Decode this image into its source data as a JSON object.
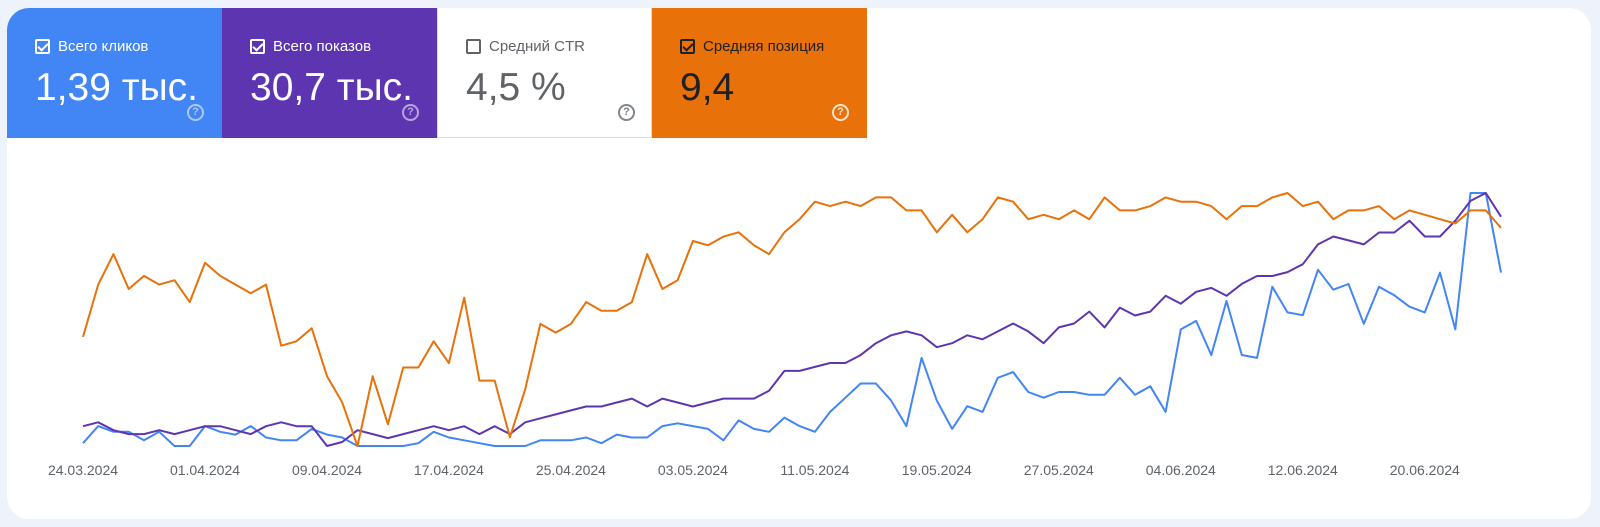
{
  "metrics": [
    {
      "key": "clicks",
      "label": "Всего кликов",
      "value": "1,39 тыс.",
      "checked": true,
      "color": "#4285f4"
    },
    {
      "key": "impressions",
      "label": "Всего показов",
      "value": "30,7 тыс.",
      "checked": true,
      "color": "#5e35b1"
    },
    {
      "key": "ctr",
      "label": "Средний CTR",
      "value": "4,5 %",
      "checked": false,
      "color": "#ffffff"
    },
    {
      "key": "position",
      "label": "Средняя позиция",
      "value": "9,4",
      "checked": true,
      "color": "#e8710a"
    }
  ],
  "help_glyph": "?",
  "chart_data": {
    "type": "line",
    "x_tick_labels": [
      "24.03.2024",
      "01.04.2024",
      "09.04.2024",
      "17.04.2024",
      "25.04.2024",
      "03.05.2024",
      "11.05.2024",
      "19.05.2024",
      "27.05.2024",
      "04.06.2024",
      "12.06.2024",
      "20.06.2024"
    ],
    "x_start": "24.03.2024",
    "x_end": "21.06.2024",
    "grid": false,
    "legend": "metric tiles above chart",
    "series": [
      {
        "name": "Всего кликов",
        "color": "#4285f4",
        "values": [
          1,
          7,
          5,
          5,
          2,
          5,
          0,
          0,
          7,
          5,
          4,
          7,
          3,
          2,
          2,
          6,
          4,
          3,
          0,
          0,
          0,
          0,
          1,
          5,
          3,
          2,
          1,
          0,
          0,
          0,
          2,
          2,
          2,
          3,
          1,
          4,
          3,
          3,
          7,
          8,
          7,
          6,
          2,
          9,
          6,
          5,
          10,
          7,
          5,
          12,
          17,
          22,
          22,
          16,
          7,
          31,
          16,
          6,
          14,
          12,
          24,
          26,
          19,
          17,
          19,
          19,
          18,
          18,
          24,
          18,
          21,
          12,
          41,
          44,
          32,
          51,
          32,
          31,
          56,
          47,
          46,
          62,
          55,
          57,
          43,
          56,
          53,
          49,
          47,
          61,
          41,
          89,
          89,
          61
        ]
      },
      {
        "name": "Всего показов",
        "color": "#5e35b1",
        "values": [
          7,
          8,
          6,
          5,
          5,
          6,
          5,
          6,
          7,
          7,
          6,
          5,
          7,
          8,
          7,
          7,
          2,
          3,
          6,
          5,
          4,
          5,
          6,
          7,
          6,
          7,
          5,
          7,
          5,
          8,
          9,
          10,
          11,
          12,
          12,
          13,
          14,
          12,
          14,
          13,
          12,
          13,
          14,
          14,
          14,
          16,
          21,
          21,
          22,
          23,
          23,
          25,
          28,
          30,
          31,
          30,
          27,
          28,
          30,
          29,
          31,
          33,
          31,
          28,
          32,
          33,
          36,
          32,
          37,
          35,
          36,
          40,
          38,
          41,
          42,
          40,
          43,
          45,
          45,
          46,
          48,
          53,
          55,
          54,
          53,
          56,
          56,
          59,
          55,
          55,
          59,
          64,
          66,
          60
        ]
      },
      {
        "name": "Средняя позиция",
        "color": "#e8710a",
        "values": [
          27,
          39,
          46,
          38,
          41,
          39,
          40,
          35,
          44,
          41,
          39,
          37,
          39,
          25,
          26,
          29,
          18,
          12,
          2,
          18,
          7,
          20,
          20,
          26,
          21,
          36,
          17,
          17,
          4,
          15,
          30,
          28,
          30,
          35,
          33,
          33,
          35,
          46,
          38,
          40,
          49,
          48,
          50,
          51,
          48,
          46,
          51,
          54,
          58,
          57,
          58,
          57,
          59,
          59,
          56,
          56,
          51,
          55,
          51,
          54,
          59,
          58,
          54,
          55,
          54,
          56,
          54,
          59,
          56,
          56,
          57,
          59,
          58,
          58,
          57,
          54,
          57,
          57,
          59,
          60,
          57,
          58,
          54,
          56,
          56,
          57,
          54,
          56,
          55,
          54,
          53,
          56,
          56,
          52
        ]
      }
    ]
  }
}
